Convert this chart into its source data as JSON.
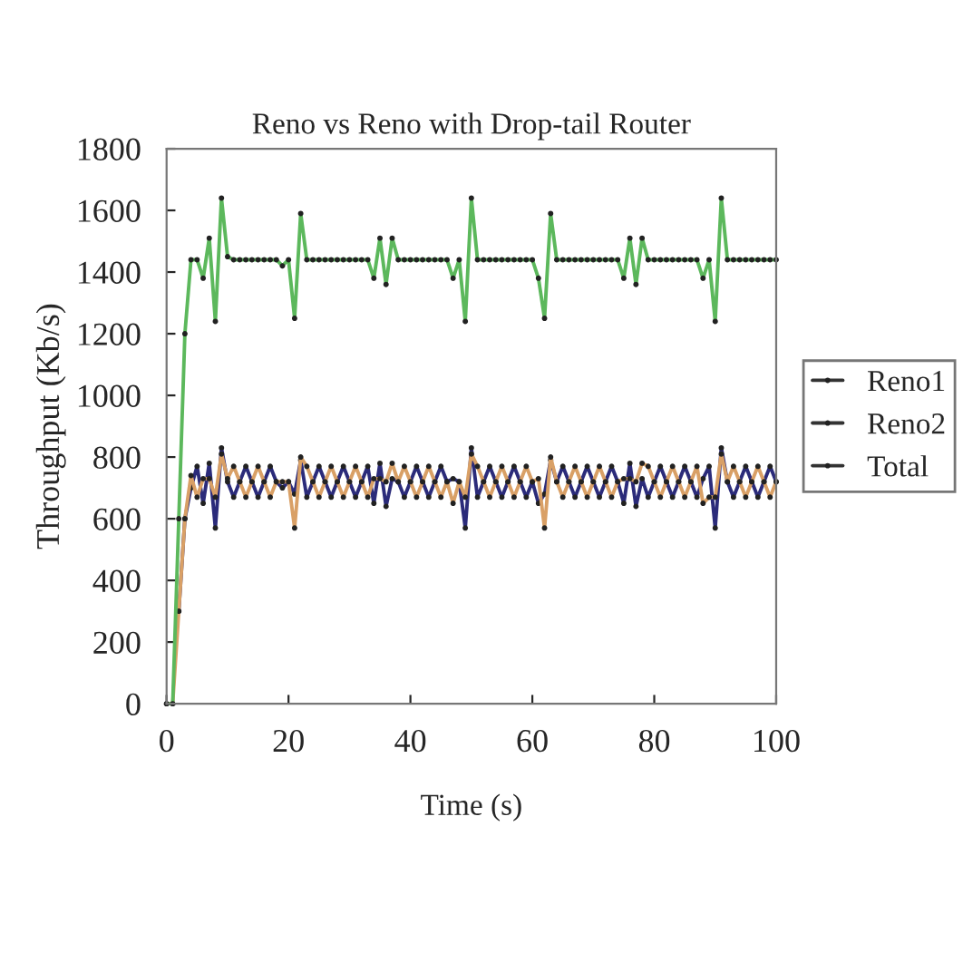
{
  "chart_data": {
    "type": "line",
    "title": "Reno vs Reno with Drop-tail Router",
    "xlabel": "Time (s)",
    "ylabel": "Throughput (Kb/s)",
    "x": [
      0,
      1,
      2,
      3,
      4,
      5,
      6,
      7,
      8,
      9,
      10,
      11,
      12,
      13,
      14,
      15,
      16,
      17,
      18,
      19,
      20,
      21,
      22,
      23,
      24,
      25,
      26,
      27,
      28,
      29,
      30,
      31,
      32,
      33,
      34,
      35,
      36,
      37,
      38,
      39,
      40,
      41,
      42,
      43,
      44,
      45,
      46,
      47,
      48,
      49,
      50,
      51,
      52,
      53,
      54,
      55,
      56,
      57,
      58,
      59,
      60,
      61,
      62,
      63,
      64,
      65,
      66,
      67,
      68,
      69,
      70,
      71,
      72,
      73,
      74,
      75,
      76,
      77,
      78,
      79,
      80,
      81,
      82,
      83,
      84,
      85,
      86,
      87,
      88,
      89,
      90,
      91,
      92,
      93,
      94,
      95,
      96,
      97,
      98,
      99,
      100
    ],
    "series": [
      {
        "name": "Reno1",
        "color": "#2b2b7a",
        "values": [
          null,
          null,
          300,
          600,
          700,
          770,
          650,
          780,
          570,
          830,
          720,
          670,
          720,
          770,
          720,
          670,
          720,
          770,
          720,
          700,
          720,
          680,
          790,
          670,
          720,
          770,
          720,
          670,
          720,
          770,
          720,
          670,
          720,
          770,
          650,
          780,
          640,
          730,
          720,
          670,
          720,
          770,
          720,
          670,
          720,
          770,
          720,
          730,
          720,
          570,
          830,
          670,
          720,
          770,
          720,
          670,
          720,
          770,
          720,
          670,
          720,
          650,
          680,
          790,
          720,
          770,
          720,
          670,
          720,
          770,
          720,
          670,
          720,
          770,
          720,
          650,
          780,
          640,
          730,
          670,
          720,
          770,
          720,
          670,
          720,
          770,
          720,
          670,
          730,
          770,
          570,
          830,
          720,
          670,
          720,
          770,
          720,
          670,
          720,
          770,
          720
        ]
      },
      {
        "name": "Reno2",
        "color": "#d9a066",
        "values": [
          0,
          0,
          300,
          600,
          740,
          670,
          730,
          730,
          670,
          810,
          730,
          770,
          720,
          670,
          720,
          770,
          720,
          670,
          720,
          720,
          720,
          570,
          800,
          770,
          720,
          670,
          720,
          770,
          720,
          670,
          720,
          770,
          720,
          670,
          730,
          730,
          720,
          780,
          720,
          770,
          720,
          670,
          720,
          770,
          720,
          670,
          720,
          650,
          720,
          670,
          810,
          770,
          720,
          670,
          720,
          770,
          720,
          670,
          720,
          770,
          720,
          730,
          570,
          800,
          720,
          670,
          720,
          770,
          720,
          670,
          720,
          770,
          720,
          670,
          720,
          730,
          730,
          720,
          780,
          770,
          720,
          670,
          720,
          770,
          720,
          670,
          720,
          770,
          650,
          670,
          670,
          810,
          720,
          770,
          720,
          670,
          720,
          770,
          720,
          670,
          720
        ]
      },
      {
        "name": "Total",
        "color": "#5cb85c",
        "values": [
          0,
          0,
          600,
          1200,
          1440,
          1440,
          1380,
          1510,
          1240,
          1640,
          1450,
          1440,
          1440,
          1440,
          1440,
          1440,
          1440,
          1440,
          1440,
          1420,
          1440,
          1250,
          1590,
          1440,
          1440,
          1440,
          1440,
          1440,
          1440,
          1440,
          1440,
          1440,
          1440,
          1440,
          1380,
          1510,
          1360,
          1510,
          1440,
          1440,
          1440,
          1440,
          1440,
          1440,
          1440,
          1440,
          1440,
          1380,
          1440,
          1240,
          1640,
          1440,
          1440,
          1440,
          1440,
          1440,
          1440,
          1440,
          1440,
          1440,
          1440,
          1380,
          1250,
          1590,
          1440,
          1440,
          1440,
          1440,
          1440,
          1440,
          1440,
          1440,
          1440,
          1440,
          1440,
          1380,
          1510,
          1360,
          1510,
          1440,
          1440,
          1440,
          1440,
          1440,
          1440,
          1440,
          1440,
          1440,
          1380,
          1440,
          1240,
          1640,
          1440,
          1440,
          1440,
          1440,
          1440,
          1440,
          1440,
          1440,
          1440
        ]
      }
    ],
    "xlim": [
      0,
      100
    ],
    "xticks": [
      0,
      20,
      40,
      60,
      80,
      100
    ],
    "ylim": [
      0,
      1800
    ],
    "yticks": [
      0,
      200,
      400,
      600,
      800,
      1000,
      1200,
      1400,
      1600,
      1800
    ],
    "grid": false,
    "legend": "right",
    "marker": "circle",
    "line_style": "solid"
  }
}
